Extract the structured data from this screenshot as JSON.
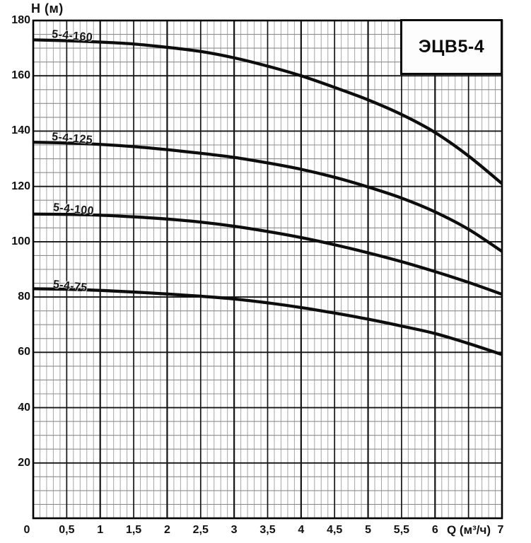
{
  "chart_data": {
    "type": "line",
    "title": "ЭЦВ5-4",
    "xlabel": "Q (м³/ч)",
    "ylabel": "Н (м)",
    "xlim": [
      0,
      7
    ],
    "ylim": [
      0,
      180
    ],
    "grid": {
      "x_minor_step": 0.1,
      "x_major_step": 0.5,
      "y_minor_step": 5,
      "y_major_step": 20,
      "visible": true
    },
    "legend_position": "labels-on-curves",
    "colors": {
      "curve": "#0d0d0d",
      "grid_minor_x": "#a6a6a6",
      "grid_minor_y": "#8c8c8c",
      "grid_major": "#141414",
      "background": "#ffffff",
      "title_box_border": "#0a0a0a"
    },
    "x_ticks": [
      {
        "q": 0,
        "label": "0"
      },
      {
        "q": 0.5,
        "label": "0,5"
      },
      {
        "q": 1,
        "label": "1"
      },
      {
        "q": 1.5,
        "label": "1,5"
      },
      {
        "q": 2,
        "label": "2"
      },
      {
        "q": 2.5,
        "label": "2,5"
      },
      {
        "q": 3,
        "label": "3"
      },
      {
        "q": 3.5,
        "label": "3,5"
      },
      {
        "q": 4,
        "label": "4"
      },
      {
        "q": 4.5,
        "label": "4,5"
      },
      {
        "q": 5,
        "label": "5"
      },
      {
        "q": 5.5,
        "label": "5,5"
      },
      {
        "q": 6,
        "label": "6"
      },
      {
        "q": 7,
        "label": "7"
      }
    ],
    "y_ticks": [
      {
        "h": 180,
        "label": "180"
      },
      {
        "h": 160,
        "label": "160"
      },
      {
        "h": 140,
        "label": "140"
      },
      {
        "h": 120,
        "label": "120"
      },
      {
        "h": 100,
        "label": "100"
      },
      {
        "h": 80,
        "label": "80"
      },
      {
        "h": 60,
        "label": "60"
      },
      {
        "h": 40,
        "label": "40"
      },
      {
        "h": 20,
        "label": "20"
      }
    ],
    "x": [
      0,
      0.5,
      1,
      1.5,
      2,
      2.5,
      3,
      3.5,
      4,
      4.5,
      5,
      5.5,
      6,
      6.5,
      7
    ],
    "series": [
      {
        "name": "5-4-160",
        "values": [
          173,
          172.7,
          172.2,
          171.5,
          170.3,
          168.8,
          166.5,
          163.5,
          160,
          155.8,
          151.3,
          146,
          139.5,
          131,
          121
        ]
      },
      {
        "name": "5-4-125",
        "values": [
          136,
          135.7,
          135.2,
          134.4,
          133.3,
          132,
          130.5,
          128.5,
          126.2,
          123.3,
          119.8,
          115.8,
          110.8,
          104.5,
          96.5
        ]
      },
      {
        "name": "5-4-100",
        "values": [
          110,
          109.9,
          109.6,
          109,
          108.2,
          107.1,
          105.6,
          103.7,
          101.5,
          98.9,
          96,
          92.8,
          89.2,
          85.3,
          81
        ]
      },
      {
        "name": "5-4-75",
        "values": [
          83,
          82.8,
          82.4,
          81.8,
          81.1,
          80.3,
          79.3,
          77.9,
          76.2,
          74.2,
          72,
          69.5,
          66.8,
          63.2,
          59.2
        ]
      }
    ]
  }
}
